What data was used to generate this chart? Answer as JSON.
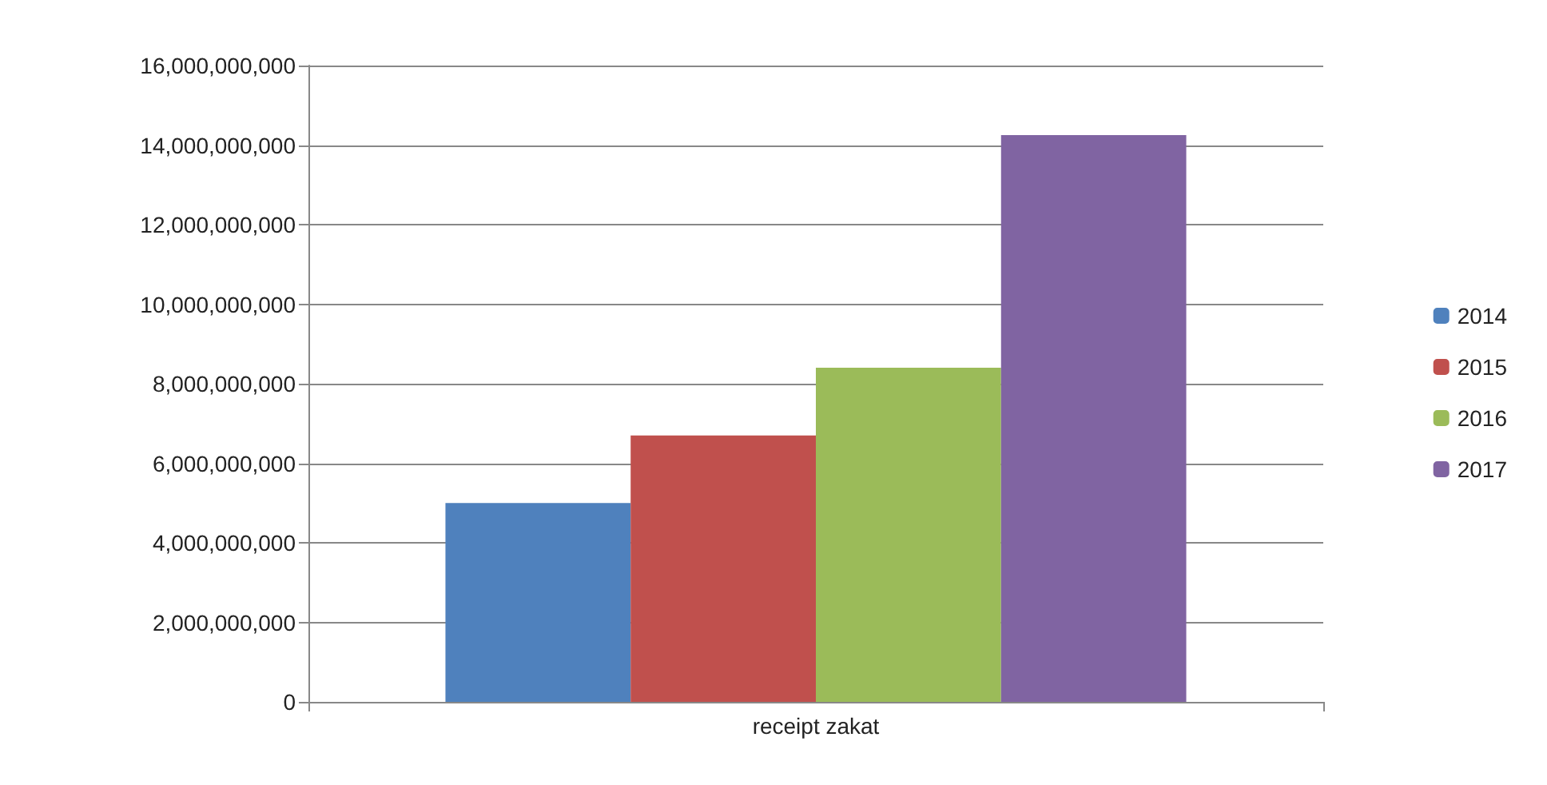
{
  "chart_data": {
    "type": "bar",
    "categories": [
      "receipt zakat"
    ],
    "series": [
      {
        "name": "2014",
        "color": "#4f81bd",
        "values": [
          5000000000
        ]
      },
      {
        "name": "2015",
        "color": "#c0504d",
        "values": [
          6700000000
        ]
      },
      {
        "name": "2016",
        "color": "#9bbb59",
        "values": [
          8400000000
        ]
      },
      {
        "name": "2017",
        "color": "#8064a2",
        "values": [
          14250000000
        ]
      }
    ],
    "ylim": [
      0,
      16000000000
    ],
    "yticks": [
      0,
      {
        "value": 2000000000,
        "label": "2,000,000,000"
      },
      {
        "value": 4000000000,
        "label": "4,000,000,000"
      },
      {
        "value": 6000000000,
        "label": "6,000,000,000"
      },
      {
        "value": 8000000000,
        "label": "8,000,000,000"
      },
      {
        "value": 10000000000,
        "label": "10,000,000,000"
      },
      {
        "value": 12000000000,
        "label": "12,000,000,000"
      },
      {
        "value": 14000000000,
        "label": "14,000,000,000"
      },
      {
        "value": 16000000000,
        "label": "16,000,000,000"
      }
    ],
    "grid": "y",
    "legend": "right"
  }
}
